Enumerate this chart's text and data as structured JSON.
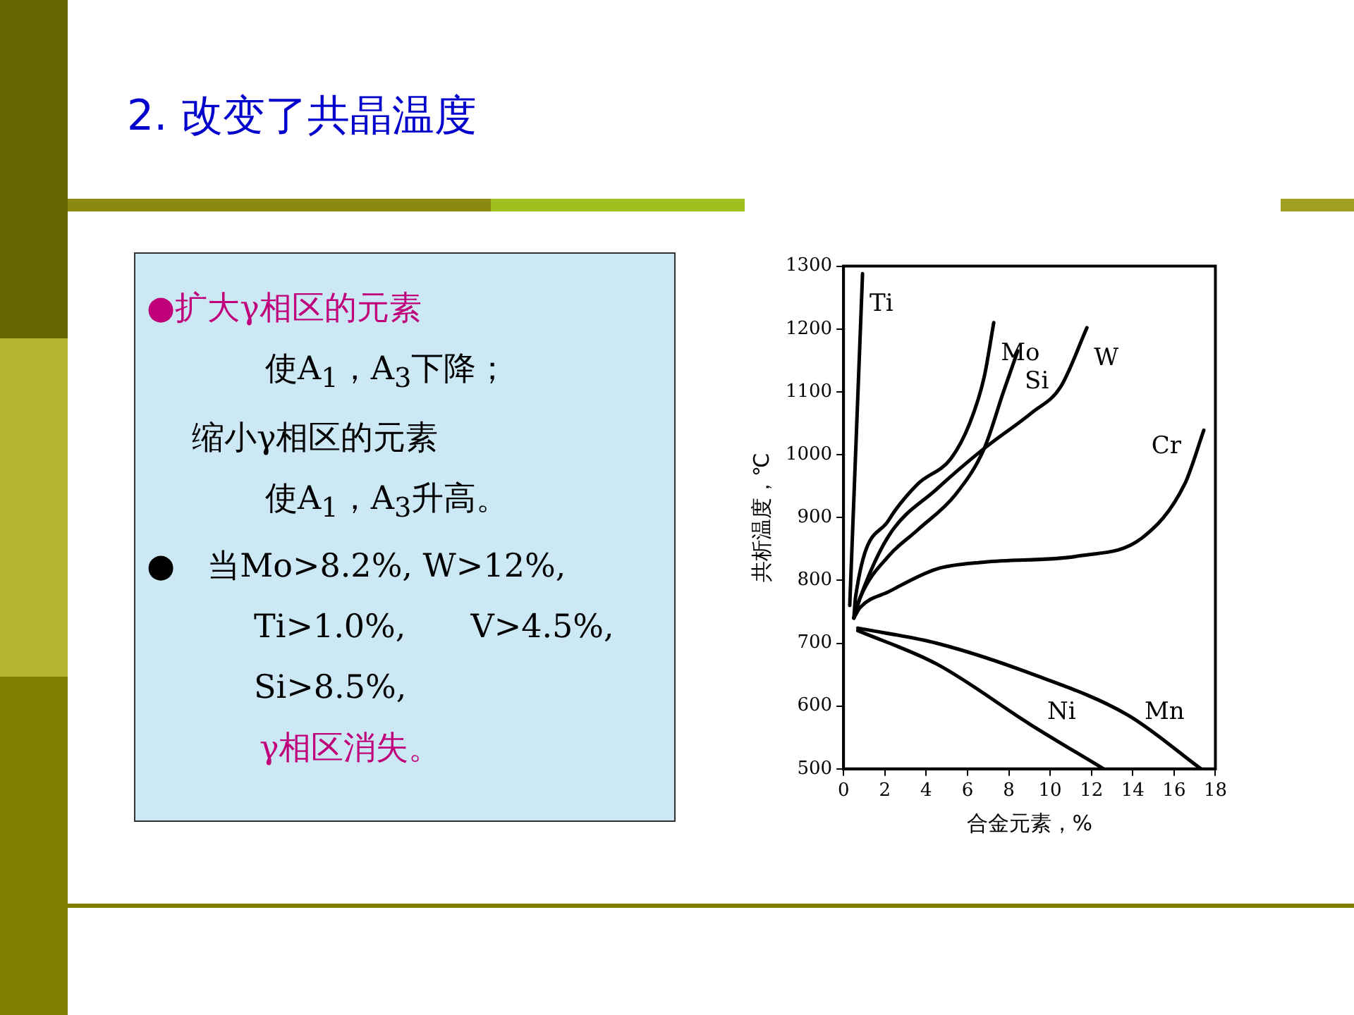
{
  "chart_data": [
    {
      "type": "other",
      "title": "2. 改变了共晶温度",
      "annotations": [
        "●扩大γ相区的元素",
        "使A$_{1}$，A$_{3}$下降；",
        "缩小γ相区的元素",
        "使A$_{1}$，A$_{3}$升高。",
        "●　当Mo>8.2%, W>12%,",
        "Ti>1.0%,　　V>4.5%,",
        "Si>8.5%,",
        "γ相区消失。"
      ]
    },
    {
      "type": "line",
      "xlabel": "合金元素，%",
      "ylabel": "共析温度，℃",
      "xlim": [
        0,
        18
      ],
      "xticks": [
        0,
        2,
        4,
        6,
        8,
        10,
        12,
        14,
        16,
        18
      ],
      "ylim": [
        500,
        1300
      ],
      "yticks": [
        500,
        600,
        700,
        800,
        900,
        1000,
        1100,
        1200,
        1300
      ],
      "grid": false,
      "legend": false,
      "marker": "none",
      "line_style": "solid",
      "series": [
        {
          "name": "Ti",
          "color": "#000000",
          "x": [
            0.3,
            0.92
          ],
          "values": [
            760,
            1288
          ]
        },
        {
          "name": "Mo",
          "color": "#000000",
          "x": [
            0.5,
            0.58,
            2.19,
            3.58,
            5.2,
            6.12,
            6.81,
            7.27
          ],
          "values": [
            740,
            773,
            896,
            953,
            994,
            1051,
            1124,
            1210
          ]
        },
        {
          "name": "Si",
          "color": "#000000",
          "x": [
            0.5,
            0.81,
            2.19,
            3.58,
            5.43,
            6.81,
            7.74,
            8.43
          ],
          "values": [
            740,
            773,
            839,
            880,
            937,
            1010,
            1100,
            1165
          ]
        },
        {
          "name": "W",
          "color": "#000000",
          "x": [
            0.5,
            0.81,
            2.19,
            4.5,
            6.81,
            9.12,
            10.51,
            11.78
          ],
          "values": [
            740,
            773,
            871,
            945,
            1010,
            1067,
            1108,
            1202
          ]
        },
        {
          "name": "Cr",
          "color": "#000000",
          "x": [
            0.5,
            0.81,
            2.19,
            4.5,
            6.81,
            11.43,
            14.43,
            16.51,
            17.44
          ],
          "values": [
            740,
            757,
            782,
            818,
            829,
            839,
            867,
            953,
            1039
          ]
        },
        {
          "name": "Mn",
          "color": "#000000",
          "x": [
            0.69,
            4.5,
            9.12,
            13.74,
            17.3
          ],
          "values": [
            724,
            700,
            651,
            586,
            500
          ]
        },
        {
          "name": "Ni",
          "color": "#000000",
          "x": [
            0.69,
            4.5,
            9.12,
            12.59
          ],
          "values": [
            720,
            667,
            569,
            500
          ]
        }
      ]
    }
  ]
}
